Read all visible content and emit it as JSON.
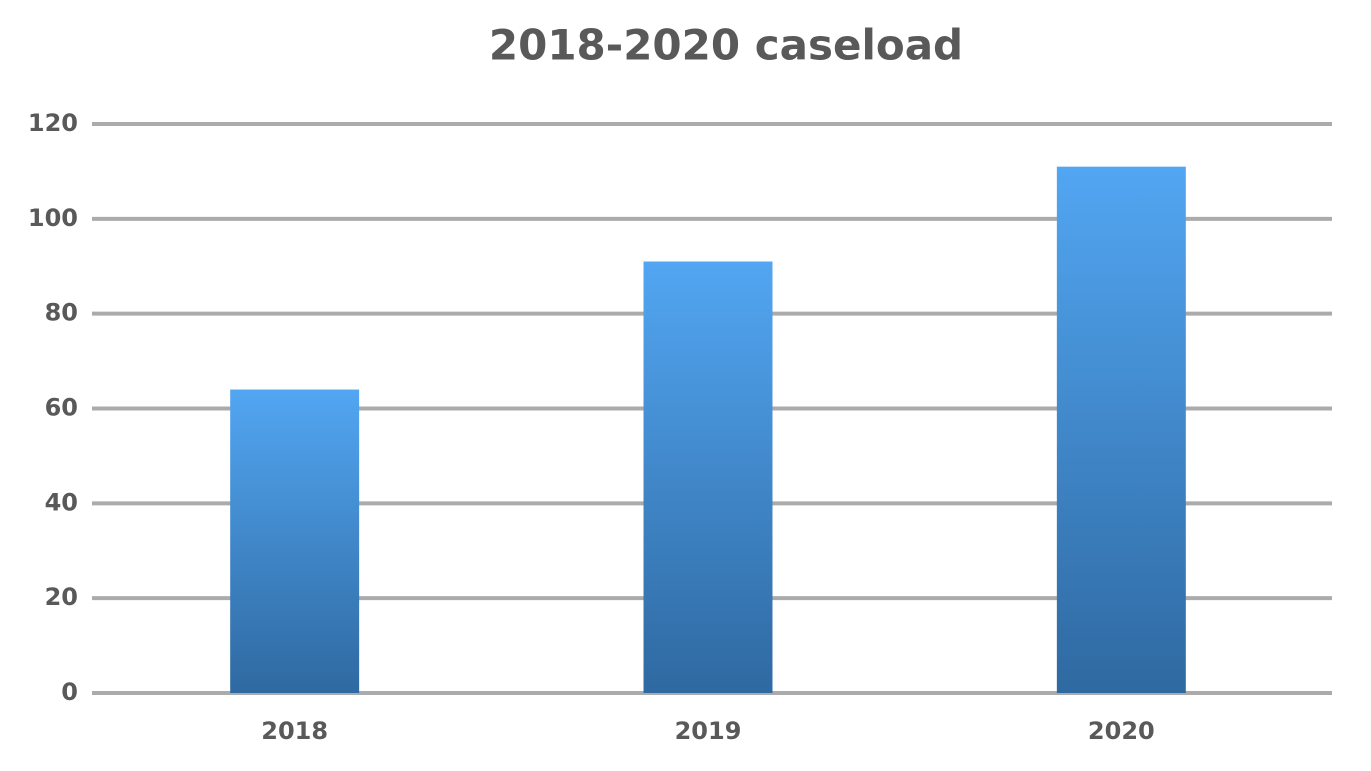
{
  "chart_data": {
    "type": "bar",
    "title": "2018-2020 caseload",
    "categories": [
      "2018",
      "2019",
      "2020"
    ],
    "values": [
      64,
      91,
      111
    ],
    "color": "#52a6f2",
    "color_bottom": "#2f69a1",
    "ylim": [
      0,
      120
    ],
    "yticks": [
      0,
      20,
      40,
      60,
      80,
      100,
      120
    ],
    "grid": true
  }
}
